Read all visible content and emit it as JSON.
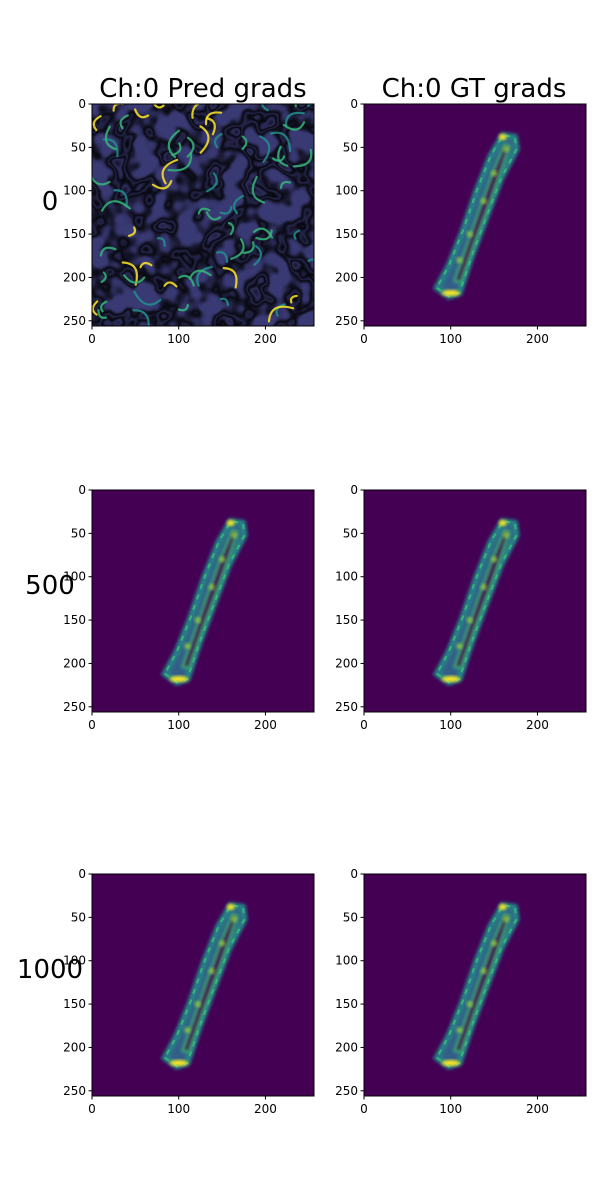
{
  "figure": {
    "column_titles": [
      "Ch:0 Pred grads",
      "Ch:0 GT grads"
    ],
    "row_labels": [
      "0",
      "500",
      "1000"
    ]
  },
  "colors": {
    "background": "#440154",
    "mid_low": "#31688e",
    "mid": "#21918c",
    "mid_high": "#35b779",
    "high": "#fde725"
  },
  "chart_data": [
    {
      "type": "heatmap",
      "row": "0",
      "title": "Ch:0 Pred grads",
      "content": "noise",
      "xlim": [
        0,
        256
      ],
      "ylim": [
        256,
        0
      ],
      "xticks": [
        0,
        100,
        200
      ],
      "yticks": [
        0,
        50,
        100,
        150,
        200,
        250
      ]
    },
    {
      "type": "heatmap",
      "row": "0",
      "title": "Ch:0 GT grads",
      "content": "digit-1",
      "xlim": [
        0,
        256
      ],
      "ylim": [
        256,
        0
      ],
      "xticks": [
        0,
        100,
        200
      ],
      "yticks": [
        0,
        50,
        100,
        150,
        200,
        250
      ]
    },
    {
      "type": "heatmap",
      "row": "500",
      "title": "",
      "content": "digit-1",
      "xlim": [
        0,
        256
      ],
      "ylim": [
        256,
        0
      ],
      "xticks": [
        0,
        100,
        200
      ],
      "yticks": [
        0,
        50,
        100,
        150,
        200,
        250
      ]
    },
    {
      "type": "heatmap",
      "row": "500",
      "title": "",
      "content": "digit-1",
      "xlim": [
        0,
        256
      ],
      "ylim": [
        256,
        0
      ],
      "xticks": [
        0,
        100,
        200
      ],
      "yticks": [
        0,
        50,
        100,
        150,
        200,
        250
      ]
    },
    {
      "type": "heatmap",
      "row": "1000",
      "title": "",
      "content": "digit-1",
      "xlim": [
        0,
        256
      ],
      "ylim": [
        256,
        0
      ],
      "xticks": [
        0,
        100,
        200
      ],
      "yticks": [
        0,
        50,
        100,
        150,
        200,
        250
      ]
    },
    {
      "type": "heatmap",
      "row": "1000",
      "title": "",
      "content": "digit-1",
      "xlim": [
        0,
        256
      ],
      "ylim": [
        256,
        0
      ],
      "xticks": [
        0,
        100,
        200
      ],
      "yticks": [
        0,
        50,
        100,
        150,
        200,
        250
      ]
    }
  ]
}
